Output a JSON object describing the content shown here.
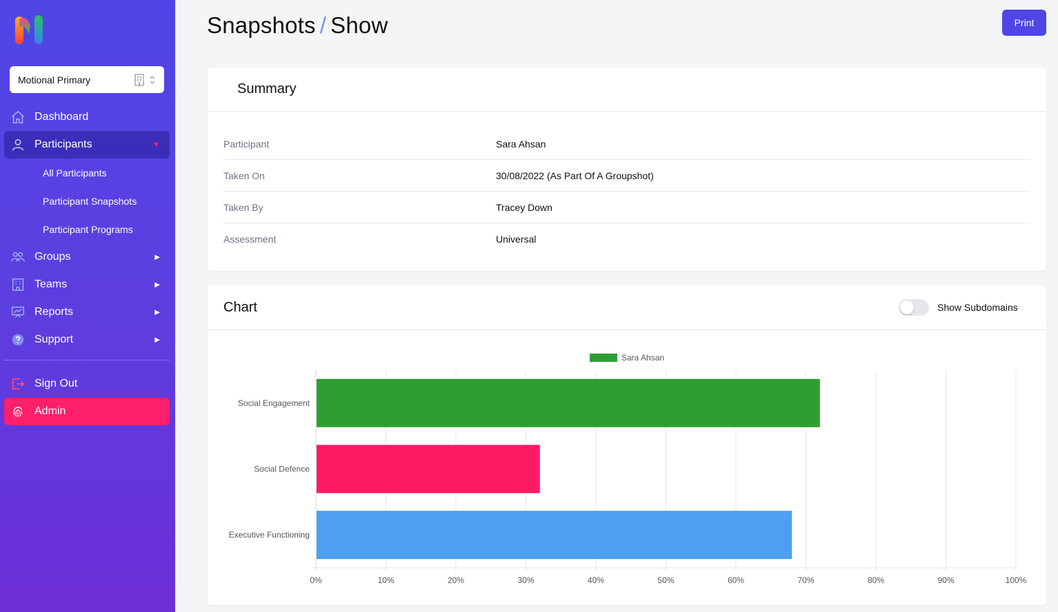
{
  "sidebar": {
    "logo": "motional-logo",
    "org_select": {
      "value": "Motional Primary",
      "icon": "building-icon",
      "chevron": "chevron-up-down-icon"
    },
    "nav": [
      {
        "label": "Dashboard",
        "icon": "home-icon"
      },
      {
        "label": "Participants",
        "icon": "user-icon",
        "active": true,
        "children": [
          "All Participants",
          "Participant Snapshots",
          "Participant Programs"
        ]
      },
      {
        "label": "Groups",
        "icon": "users-icon"
      },
      {
        "label": "Teams",
        "icon": "office-building-icon"
      },
      {
        "label": "Reports",
        "icon": "presentation-chart-icon"
      },
      {
        "label": "Support",
        "icon": "question-circle-icon"
      }
    ],
    "sign_out": {
      "label": "Sign Out",
      "icon": "logout-icon"
    },
    "admin": {
      "label": "Admin",
      "icon": "fingerprint-icon"
    }
  },
  "header": {
    "breadcrumb_parent": "Snapshots",
    "separator": "/",
    "breadcrumb_current": "Show",
    "print_label": "Print"
  },
  "summary": {
    "title": "Summary",
    "rows": [
      {
        "key": "Participant",
        "value": "Sara Ahsan"
      },
      {
        "key": "Taken On",
        "value": "30/08/2022 (As Part Of A Groupshot)"
      },
      {
        "key": "Taken By",
        "value": "Tracey Down"
      },
      {
        "key": "Assessment",
        "value": "Universal"
      }
    ]
  },
  "chart_section": {
    "title": "Chart",
    "toggle_label": "Show Subdomains",
    "toggle_on": false
  },
  "colors": {
    "primary": "#4f46e5",
    "admin": "#ff1f6b",
    "bar_green": "#2e9e32",
    "bar_pink": "#ff1b63",
    "bar_blue": "#4f9ff0"
  },
  "chart_data": {
    "type": "bar",
    "orientation": "horizontal",
    "categories": [
      "Social Engagement",
      "Social Defence",
      "Executive Functioning"
    ],
    "series": [
      {
        "name": "Sara Ahsan",
        "values": [
          72,
          32,
          68
        ]
      }
    ],
    "bar_colors": [
      "#2e9e32",
      "#ff1b63",
      "#4f9ff0"
    ],
    "legend_color": "#2e9e32",
    "xlim": [
      0,
      100
    ],
    "x_ticks": [
      "0%",
      "10%",
      "20%",
      "30%",
      "40%",
      "50%",
      "60%",
      "70%",
      "80%",
      "90%",
      "100%"
    ],
    "legend": "top-center",
    "grid": true
  }
}
